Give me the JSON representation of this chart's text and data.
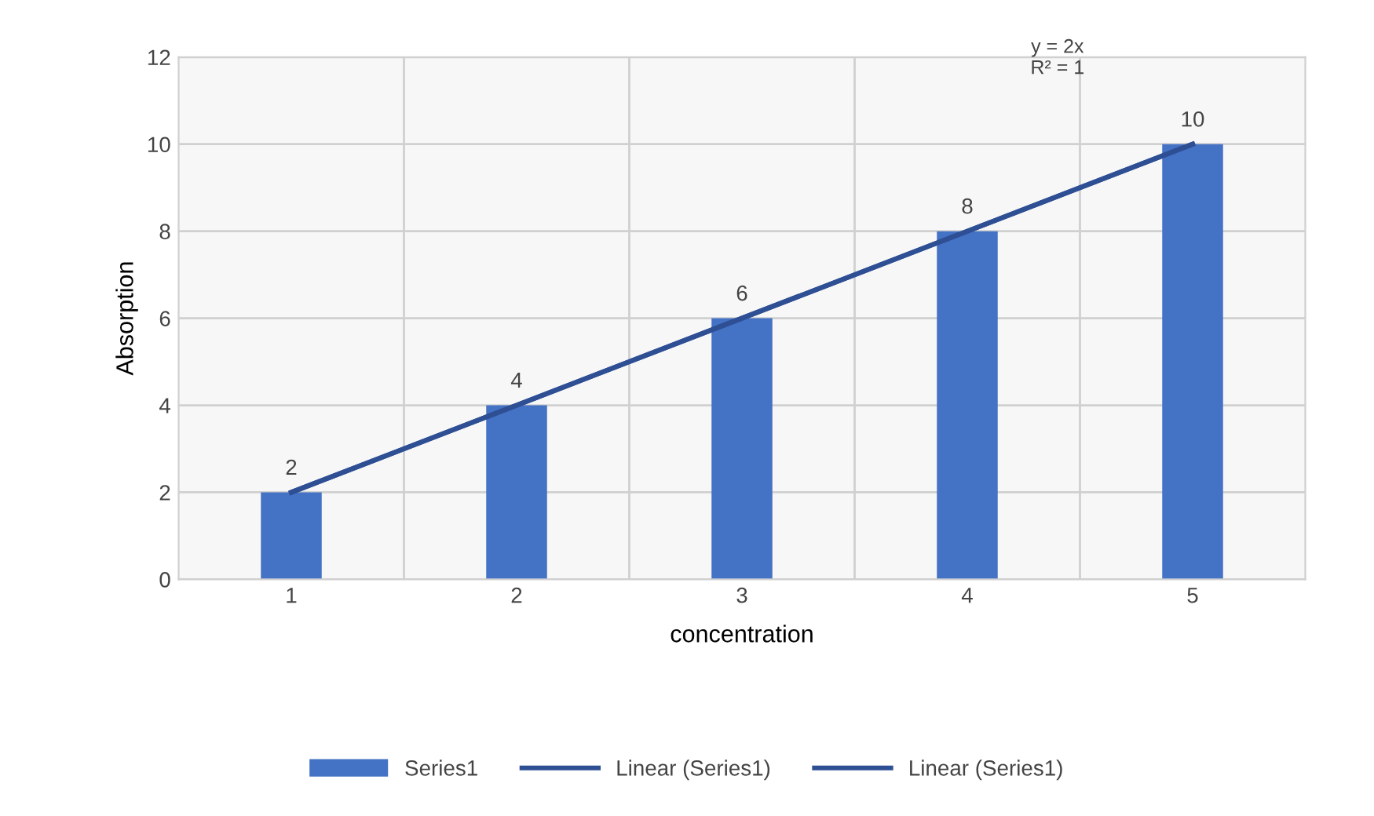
{
  "chart_data": {
    "type": "bar",
    "xlabel": "concentration",
    "ylabel": "Absorption",
    "categories": [
      "1",
      "2",
      "3",
      "4",
      "5"
    ],
    "series": [
      {
        "name": "Series1",
        "color": "#4472c4",
        "values": [
          2,
          4,
          6,
          8,
          10
        ],
        "value_labels": [
          "2",
          "4",
          "6",
          "8",
          "10"
        ]
      },
      {
        "name": "Linear (Series1)",
        "type": "line",
        "color": "#2e4f94",
        "x": [
          "1",
          "5"
        ],
        "values": [
          2,
          10
        ]
      },
      {
        "name": "Linear (Series1)",
        "type": "line",
        "color": "#2e4f94",
        "x": [
          "1",
          "5"
        ],
        "values": [
          2,
          10
        ]
      }
    ],
    "ylim": [
      0,
      12
    ],
    "yticks": [
      0,
      2,
      4,
      6,
      8,
      10,
      12
    ],
    "grid": true,
    "legend": "bottom",
    "marker": "none",
    "line_style": "solid",
    "annotations": [
      "y = 2x\nR² = 1"
    ]
  }
}
